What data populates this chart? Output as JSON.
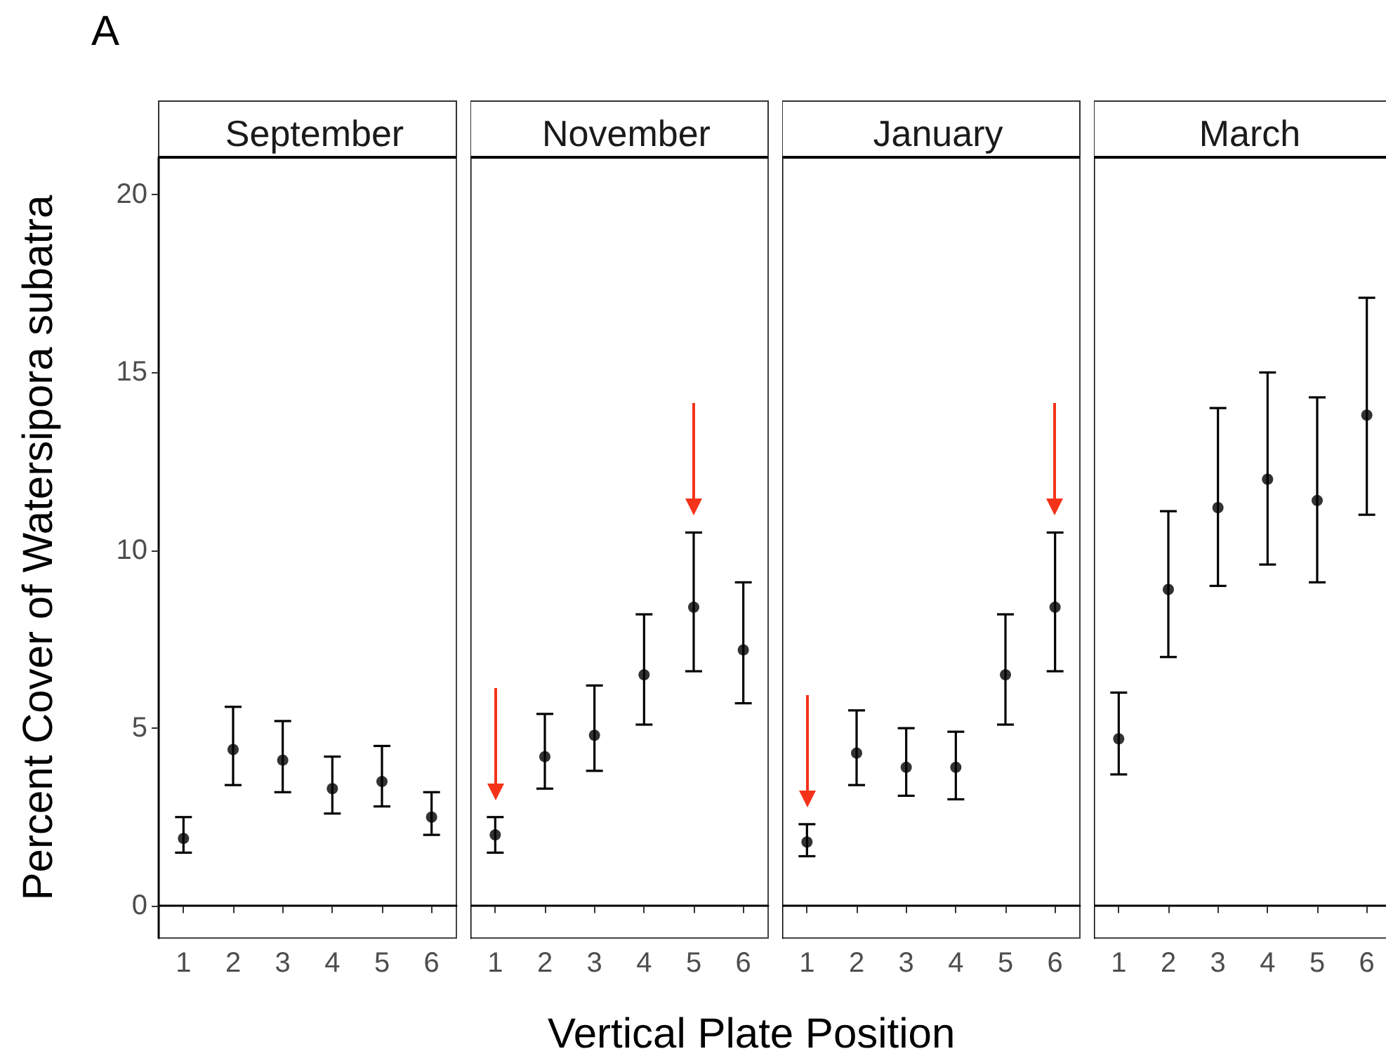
{
  "chart_data": [
    {
      "type": "scatter",
      "title": "September",
      "xlabel": "Vertical Plate Position",
      "ylabel": "Percent Cover of Watersipora subatra",
      "annotations": [
        "A"
      ],
      "categories": [
        "1",
        "2",
        "3",
        "4",
        "5",
        "6"
      ],
      "color": "#000000",
      "marker": "circle",
      "values": [
        1.9,
        4.4,
        4.1,
        3.3,
        3.5,
        2.5
      ],
      "errors": [
        [
          1.5,
          2.5
        ],
        [
          3.4,
          5.6
        ],
        [
          3.2,
          5.2
        ],
        [
          2.6,
          4.2
        ],
        [
          2.8,
          4.5
        ],
        [
          2.0,
          3.2
        ]
      ],
      "ylim": [
        -0.9,
        21.05
      ],
      "yticks": [
        0,
        5,
        10,
        15,
        20
      ]
    },
    {
      "type": "scatter",
      "title": "November",
      "annotations": [
        {
          "x": "1"
        },
        {
          "x": "5"
        }
      ],
      "categories": [
        "1",
        "2",
        "3",
        "4",
        "5",
        "6"
      ],
      "color": "#000000",
      "marker": "circle",
      "values": [
        2.0,
        4.2,
        4.8,
        6.5,
        8.4,
        7.2
      ],
      "errors": [
        [
          1.5,
          2.5
        ],
        [
          3.3,
          5.4
        ],
        [
          3.8,
          6.2
        ],
        [
          5.1,
          8.2
        ],
        [
          6.6,
          10.5
        ],
        [
          5.7,
          9.1
        ]
      ],
      "ylim": [
        -0.9,
        21.05
      ],
      "yticks": [
        0,
        5,
        10,
        15,
        20
      ],
      "tick_labels": "x"
    },
    {
      "type": "scatter",
      "title": "January",
      "annotations": [
        {
          "x": "1"
        },
        {
          "x": "6"
        }
      ],
      "categories": [
        "1",
        "2",
        "3",
        "4",
        "5",
        "6"
      ],
      "color": "#000000",
      "marker": "circle",
      "values": [
        1.8,
        4.3,
        3.9,
        3.9,
        6.5,
        8.4
      ],
      "errors": [
        [
          1.4,
          2.3
        ],
        [
          3.4,
          5.5
        ],
        [
          3.1,
          5.0
        ],
        [
          3.0,
          4.9
        ],
        [
          5.1,
          8.2
        ],
        [
          6.6,
          10.5
        ]
      ],
      "ylim": [
        -0.9,
        21.05
      ],
      "yticks": [
        0,
        5,
        10,
        15,
        20
      ],
      "tick_labels": "x"
    },
    {
      "type": "scatter",
      "title": "March",
      "categories": [
        "1",
        "2",
        "3",
        "4",
        "5",
        "6"
      ],
      "color": "#000000",
      "marker": "circle",
      "values": [
        4.7,
        8.9,
        11.2,
        12.0,
        11.4,
        13.8
      ],
      "errors": [
        [
          3.7,
          6.0
        ],
        [
          7.0,
          11.1
        ],
        [
          9.0,
          14.0
        ],
        [
          9.6,
          15.0
        ],
        [
          9.1,
          14.3
        ],
        [
          11.0,
          17.1
        ]
      ],
      "ylim": [
        -0.9,
        21.05
      ],
      "yticks": [
        0,
        5,
        10,
        15,
        20
      ],
      "tick_labels": "x"
    }
  ]
}
